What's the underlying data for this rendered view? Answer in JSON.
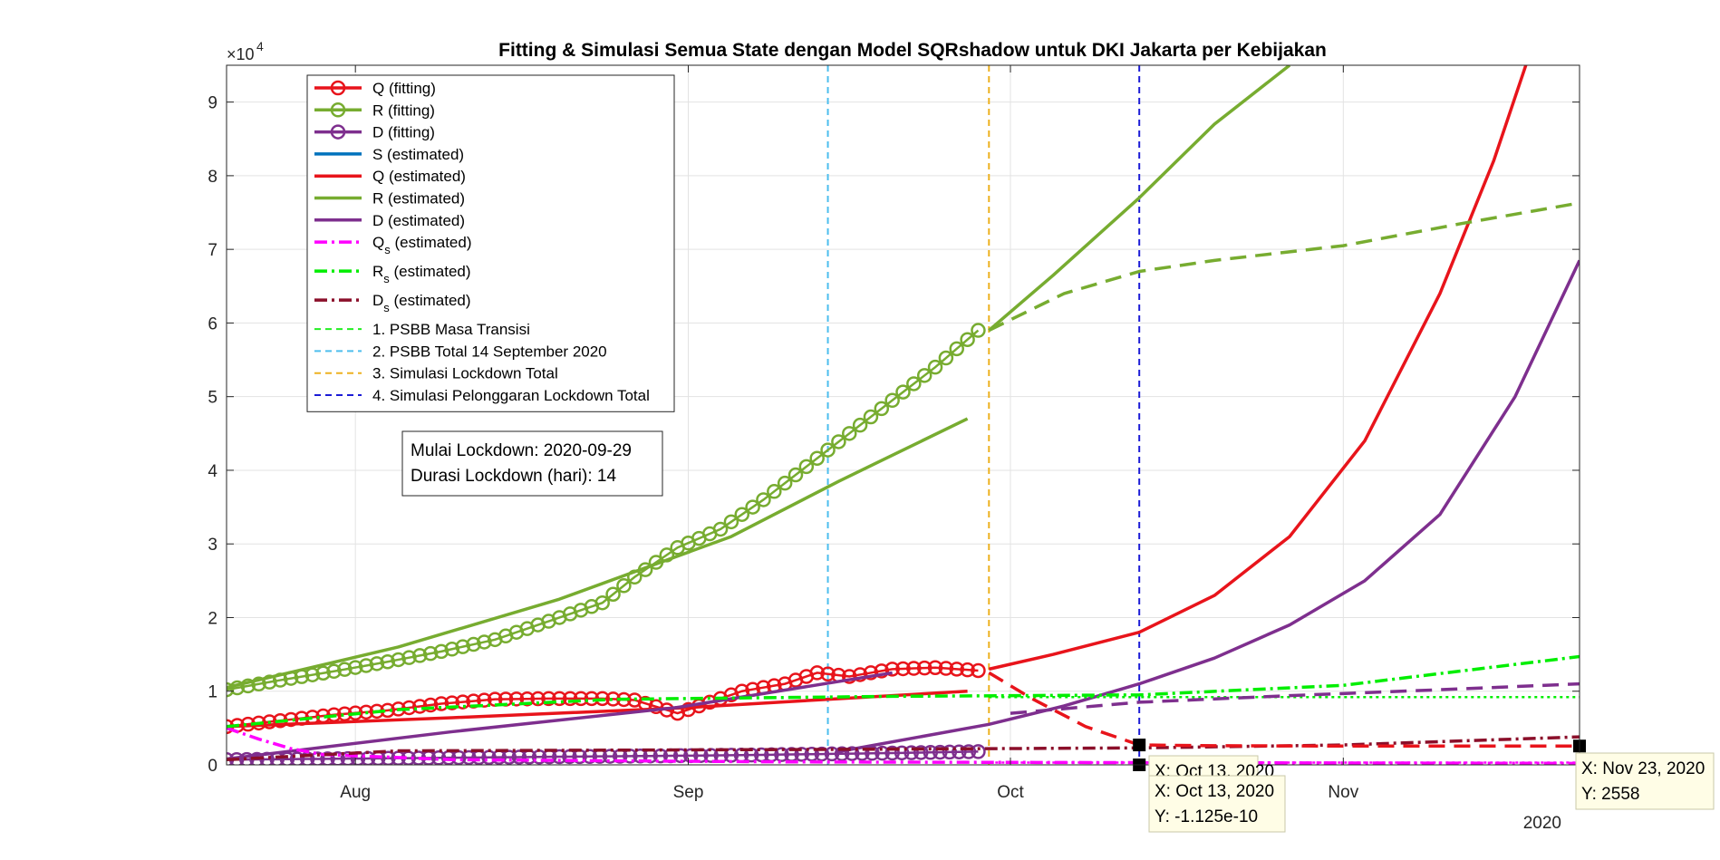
{
  "chart_data": {
    "type": "line",
    "title": "Fitting & Simulasi Semua State dengan Model SQRshadow untuk DKI Jakarta per Kebijakan",
    "y_exponent_label": "×10",
    "y_exponent_power": "4",
    "x_year_label": "2020",
    "xlim": [
      "2020-07-20",
      "2020-11-23"
    ],
    "ylim": [
      0,
      95000
    ],
    "grid": true,
    "legend_placement": "top-left",
    "x_ticks": [
      {
        "date": "2020-08-01",
        "label": "Aug"
      },
      {
        "date": "2020-09-01",
        "label": "Sep"
      },
      {
        "date": "2020-10-01",
        "label": "Oct"
      },
      {
        "date": "2020-11-01",
        "label": "Nov"
      }
    ],
    "y_ticks": [
      {
        "value": 0,
        "label": "0"
      },
      {
        "value": 10000,
        "label": "1"
      },
      {
        "value": 20000,
        "label": "2"
      },
      {
        "value": 30000,
        "label": "3"
      },
      {
        "value": 40000,
        "label": "4"
      },
      {
        "value": 50000,
        "label": "5"
      },
      {
        "value": 60000,
        "label": "6"
      },
      {
        "value": 70000,
        "label": "7"
      },
      {
        "value": 80000,
        "label": "8"
      },
      {
        "value": 90000,
        "label": "9"
      }
    ],
    "series": [
      {
        "key": "Q_fit",
        "name": "Q (fitting)",
        "color": "#e8141b",
        "style": "marker",
        "x": [
          "2020-07-20",
          "2020-07-25",
          "2020-07-30",
          "2020-08-04",
          "2020-08-09",
          "2020-08-14",
          "2020-08-19",
          "2020-08-24",
          "2020-08-27",
          "2020-08-31",
          "2020-09-03",
          "2020-09-06",
          "2020-09-10",
          "2020-09-13",
          "2020-09-16",
          "2020-09-20",
          "2020-09-24",
          "2020-09-28"
        ],
        "y": [
          5200,
          6000,
          6800,
          7400,
          8300,
          8900,
          9000,
          9000,
          8800,
          7000,
          8500,
          10000,
          11000,
          12500,
          12000,
          13000,
          13200,
          12800
        ]
      },
      {
        "key": "R_fit",
        "name": "R (fitting)",
        "color": "#77ac30",
        "style": "marker",
        "x": [
          "2020-07-20",
          "2020-07-25",
          "2020-07-30",
          "2020-08-04",
          "2020-08-09",
          "2020-08-14",
          "2020-08-19",
          "2020-08-24",
          "2020-08-27",
          "2020-08-31",
          "2020-09-04",
          "2020-09-08",
          "2020-09-12",
          "2020-09-16",
          "2020-09-20",
          "2020-09-24",
          "2020-09-28"
        ],
        "y": [
          10200,
          11500,
          12700,
          14000,
          15400,
          17000,
          19500,
          22000,
          25500,
          29500,
          32000,
          36000,
          40500,
          45000,
          49500,
          54000,
          59000
        ]
      },
      {
        "key": "D_fit",
        "name": "D (fitting)",
        "color": "#7e2f8e",
        "style": "marker",
        "x": [
          "2020-07-20",
          "2020-08-05",
          "2020-08-20",
          "2020-09-05",
          "2020-09-20",
          "2020-09-28"
        ],
        "y": [
          700,
          900,
          1100,
          1300,
          1600,
          1800
        ]
      },
      {
        "key": "S_est",
        "name": "S (estimated)",
        "color": "#0072bd",
        "style": "solid",
        "x": [],
        "y": []
      },
      {
        "key": "Q_est",
        "name": "Q (estimated)",
        "color": "#e8141b",
        "style": "solid",
        "x": [
          "2020-07-20",
          "2020-08-10",
          "2020-08-31",
          "2020-09-27"
        ],
        "y": [
          5200,
          6400,
          7700,
          10000
        ]
      },
      {
        "key": "Q_est2",
        "name": "",
        "color": "#e8141b",
        "style": "solid",
        "x": [
          "2020-09-29",
          "2020-10-05",
          "2020-10-13",
          "2020-10-20",
          "2020-10-27",
          "2020-11-03",
          "2020-11-10",
          "2020-11-15",
          "2020-11-18"
        ],
        "y": [
          13000,
          15000,
          18000,
          23000,
          31000,
          44000,
          64000,
          82000,
          95000
        ]
      },
      {
        "key": "R_est",
        "name": "R (estimated)",
        "color": "#77ac30",
        "style": "solid",
        "x": [
          "2020-07-20",
          "2020-08-05",
          "2020-08-20",
          "2020-09-05",
          "2020-09-15",
          "2020-09-27"
        ],
        "y": [
          10500,
          16000,
          22500,
          31000,
          38500,
          47000
        ]
      },
      {
        "key": "R_est2",
        "name": "",
        "color": "#77ac30",
        "style": "solid",
        "x": [
          "2020-09-29",
          "2020-10-05",
          "2020-10-13",
          "2020-10-20",
          "2020-10-27"
        ],
        "y": [
          59000,
          66500,
          77000,
          87000,
          95000
        ]
      },
      {
        "key": "D_est",
        "name": "D (estimated)",
        "color": "#7e2f8e",
        "style": "solid",
        "x": [
          "2020-07-20",
          "2020-08-10",
          "2020-08-31",
          "2020-09-20"
        ],
        "y": [
          800,
          4500,
          7800,
          12500
        ]
      },
      {
        "key": "D_est2",
        "name": "",
        "color": "#7e2f8e",
        "style": "solid",
        "x": [
          "2020-09-15",
          "2020-09-29",
          "2020-10-06",
          "2020-10-13",
          "2020-10-20",
          "2020-10-27",
          "2020-11-03",
          "2020-11-10",
          "2020-11-17",
          "2020-11-23"
        ],
        "y": [
          1800,
          5500,
          8000,
          11000,
          14500,
          19000,
          25000,
          34000,
          50000,
          68500
        ]
      },
      {
        "key": "Qs_est",
        "name": "Q",
        "name_sub": "s",
        "name_rest": " (estimated)",
        "color": "#ff00ff",
        "style": "dashdot",
        "x": [
          "2020-07-20",
          "2020-07-23",
          "2020-07-26",
          "2020-07-29",
          "2020-08-10",
          "2020-09-10",
          "2020-10-13",
          "2020-11-23"
        ],
        "y": [
          5000,
          3500,
          2200,
          1400,
          700,
          400,
          300,
          200
        ]
      },
      {
        "key": "Rs_est",
        "name": "R",
        "name_sub": "s",
        "name_rest": " (estimated)",
        "color": "#00ee00",
        "style": "dashdot",
        "x": [
          "2020-07-20",
          "2020-08-05",
          "2020-08-25",
          "2020-09-20",
          "2020-10-13",
          "2020-11-01",
          "2020-11-23"
        ],
        "y": [
          5200,
          7500,
          8900,
          9300,
          9500,
          10800,
          14700
        ]
      },
      {
        "key": "Ds_est",
        "name": "D",
        "name_sub": "s",
        "name_rest": " (estimated)",
        "color": "#8b0f2a",
        "style": "dashdot",
        "x": [
          "2020-07-20",
          "2020-08-05",
          "2020-09-15",
          "2020-10-13",
          "2020-11-01",
          "2020-11-23"
        ],
        "y": [
          700,
          1900,
          2100,
          2300,
          2700,
          3800
        ]
      },
      {
        "key": "PSBB_transisi",
        "name": "1. PSBB Masa Transisi",
        "color": "#22ee22",
        "style": "dash-legend",
        "x": [],
        "y": []
      },
      {
        "key": "PSBB_total",
        "name": "2. PSBB Total 14 September 2020",
        "color": "#4dbeee",
        "style": "dash-legend",
        "x": [],
        "y": []
      },
      {
        "key": "Sim_lockdown",
        "name": "3. Simulasi Lockdown Total",
        "color": "#edb120",
        "style": "dash-legend",
        "x": [],
        "y": []
      },
      {
        "key": "Sim_pelonggaran",
        "name": "4. Simulasi Pelonggaran Lockdown Total",
        "color": "#1c1cd6",
        "style": "dash-legend",
        "x": [],
        "y": []
      },
      {
        "key": "Rs_flat",
        "name": "",
        "color": "#00ee00",
        "style": "dotted",
        "x": [
          "2020-09-29",
          "2020-11-23"
        ],
        "y": [
          9200,
          9200
        ]
      },
      {
        "key": "Qs_flat",
        "name": "",
        "color": "#ff00ff",
        "style": "dotted",
        "x": [
          "2020-09-29",
          "2020-11-23"
        ],
        "y": [
          300,
          300
        ]
      },
      {
        "key": "Q_lock",
        "name": "",
        "color": "#e8141b",
        "style": "dashed",
        "x": [
          "2020-09-29",
          "2020-10-03",
          "2020-10-08",
          "2020-10-13",
          "2020-10-20",
          "2020-11-01",
          "2020-11-23"
        ],
        "y": [
          12500,
          9000,
          5200,
          2700,
          2600,
          2550,
          2558
        ]
      },
      {
        "key": "R_lock",
        "name": "",
        "color": "#77ac30",
        "style": "dashed",
        "x": [
          "2020-09-29",
          "2020-10-06",
          "2020-10-13",
          "2020-10-20",
          "2020-11-01",
          "2020-11-12",
          "2020-11-23"
        ],
        "y": [
          59000,
          64000,
          67000,
          68500,
          70500,
          73500,
          76300
        ]
      },
      {
        "key": "D_lock",
        "name": "",
        "color": "#7e2f8e",
        "style": "dashed",
        "x": [
          "2020-10-01",
          "2020-10-13",
          "2020-10-27",
          "2020-11-10",
          "2020-11-23"
        ],
        "y": [
          7000,
          8500,
          9400,
          10200,
          11000
        ]
      }
    ],
    "vertical_lines": [
      {
        "date": "2020-09-14",
        "color": "#4dbeee"
      },
      {
        "date": "2020-09-29",
        "color": "#edb120"
      },
      {
        "date": "2020-10-13",
        "color": "#1c1cd6"
      }
    ],
    "info_box": {
      "line1": "Mulai Lockdown: 2020-09-29",
      "line2": "Durasi Lockdown (hari): 14"
    },
    "datatips": [
      {
        "date": "2020-10-13",
        "value": 2700,
        "line1": "X: Oct 13, 2020",
        "line2": ""
      },
      {
        "date": "2020-10-13",
        "value": 0,
        "line1": "X: Oct 13, 2020",
        "line2": "Y: -1.125e-10"
      },
      {
        "date": "2020-11-23",
        "value": 2558,
        "line1": "X: Nov 23, 2020",
        "line2": "Y: 2558"
      }
    ]
  }
}
